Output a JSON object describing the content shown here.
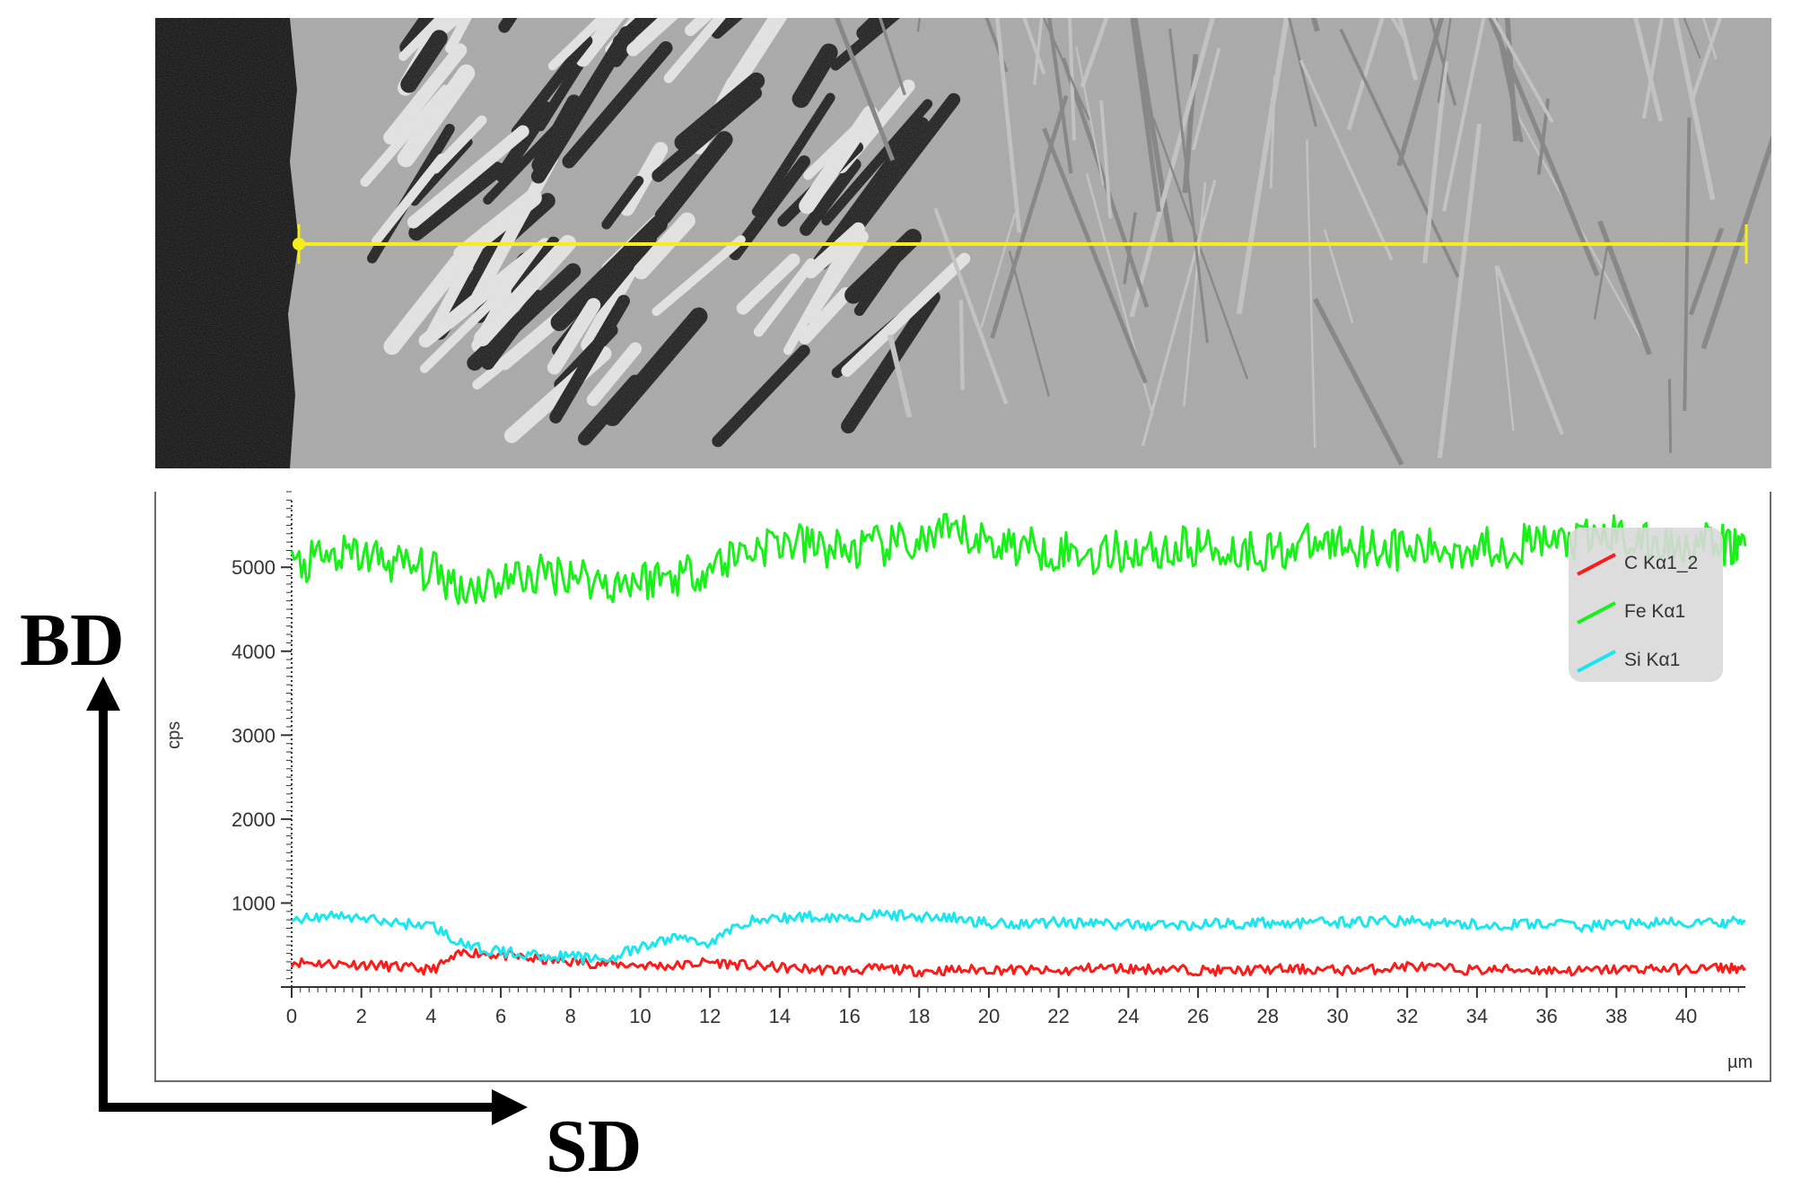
{
  "chart_data": {
    "type": "line",
    "xlabel": "µm",
    "ylabel": "cps",
    "xlim": [
      0,
      41.7
    ],
    "ylim": [
      0,
      5900
    ],
    "x_ticks": [
      "0",
      "2",
      "4",
      "6",
      "8",
      "10",
      "12",
      "14",
      "16",
      "18",
      "20",
      "22",
      "24",
      "26",
      "28",
      "30",
      "32",
      "34",
      "36",
      "38",
      "40"
    ],
    "y_ticks": [
      "1000",
      "2000",
      "3000",
      "4000",
      "5000"
    ],
    "legend_position": "top-right",
    "grid": false,
    "series": [
      {
        "name": "C Kα1_2",
        "color": "#ff1a1a",
        "x": [
          0,
          1,
          2,
          3,
          4,
          5,
          6,
          7,
          8,
          9,
          10,
          11,
          12,
          13,
          14,
          15,
          16,
          17,
          18,
          19,
          20,
          21,
          22,
          23,
          24,
          25,
          26,
          27,
          28,
          29,
          30,
          31,
          32,
          33,
          34,
          35,
          36,
          37,
          38,
          39,
          40,
          41,
          41.7
        ],
        "y": [
          300,
          280,
          270,
          240,
          200,
          420,
          380,
          330,
          300,
          280,
          260,
          250,
          300,
          260,
          230,
          210,
          200,
          220,
          190,
          200,
          210,
          200,
          180,
          230,
          220,
          210,
          200,
          190,
          210,
          210,
          200,
          210,
          250,
          220,
          200,
          210,
          200,
          190,
          210,
          220,
          210,
          230,
          220
        ]
      },
      {
        "name": "Fe Kα1",
        "color": "#19f019",
        "x": [
          0,
          1,
          2,
          3,
          4,
          5,
          6,
          7,
          8,
          9,
          10,
          11,
          12,
          13,
          14,
          15,
          16,
          17,
          18,
          19,
          20,
          21,
          22,
          23,
          24,
          25,
          26,
          27,
          28,
          29,
          30,
          31,
          32,
          33,
          34,
          35,
          36,
          37,
          38,
          39,
          40,
          41,
          41.7
        ],
        "y": [
          5000,
          5100,
          5150,
          5050,
          4950,
          4750,
          4850,
          4900,
          4950,
          4800,
          4850,
          4900,
          5000,
          5200,
          5300,
          5250,
          5200,
          5250,
          5300,
          5400,
          5300,
          5250,
          5200,
          5150,
          5200,
          5200,
          5250,
          5200,
          5200,
          5250,
          5300,
          5250,
          5200,
          5200,
          5250,
          5250,
          5300,
          5300,
          5400,
          5250,
          5300,
          5250,
          5250
        ]
      },
      {
        "name": "Si Kα1",
        "color": "#19e6f0",
        "x": [
          0,
          1,
          2,
          3,
          4,
          5,
          6,
          7,
          8,
          9,
          10,
          11,
          12,
          13,
          14,
          15,
          16,
          17,
          18,
          19,
          20,
          21,
          22,
          23,
          24,
          25,
          26,
          27,
          28,
          29,
          30,
          31,
          32,
          33,
          34,
          35,
          36,
          37,
          38,
          39,
          40,
          41,
          41.7
        ],
        "y": [
          800,
          850,
          820,
          760,
          740,
          480,
          420,
          380,
          360,
          330,
          460,
          600,
          520,
          780,
          820,
          840,
          830,
          860,
          840,
          820,
          760,
          760,
          780,
          760,
          740,
          740,
          740,
          760,
          760,
          760,
          770,
          780,
          780,
          760,
          740,
          740,
          760,
          720,
          750,
          760,
          760,
          760,
          780
        ]
      }
    ]
  },
  "directions": {
    "vertical": "BD",
    "horizontal": "SD"
  },
  "scan_line": {
    "color": "#f5ee1e"
  }
}
